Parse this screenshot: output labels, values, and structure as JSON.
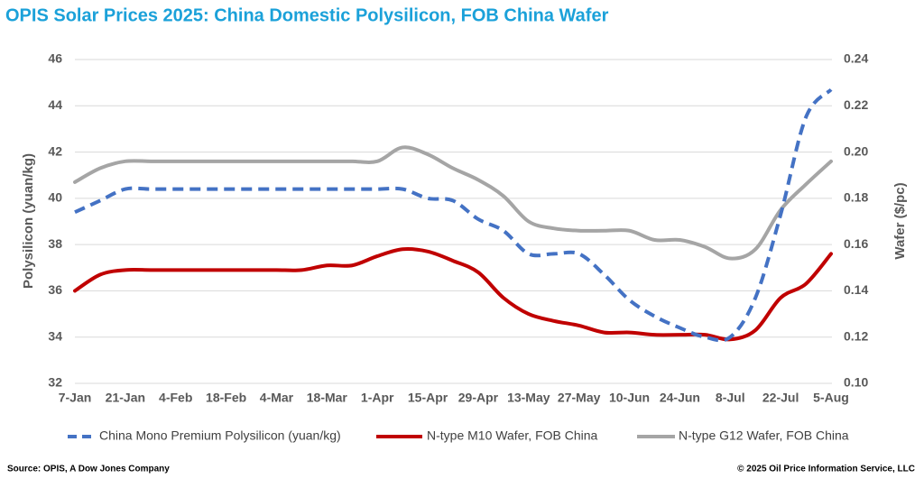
{
  "chart_data": {
    "type": "line",
    "title": "OPIS Solar Prices 2025: China Domestic Polysilicon, FOB China Wafer",
    "y_label": "Polysilicon (yuan/kg)",
    "y2_label": "Wafer ($/pc)",
    "source": "Source: OPIS, A Dow Jones Company",
    "copyright": "© 2025 Oil Price Information Service, LLC",
    "categories": [
      "7-Jan",
      null,
      "21-Jan",
      null,
      "4-Feb",
      null,
      "18-Feb",
      null,
      "4-Mar",
      null,
      "18-Mar",
      null,
      "1-Apr",
      null,
      "15-Apr",
      null,
      "29-Apr",
      null,
      "13-May",
      null,
      "27-May",
      null,
      "10-Jun",
      null,
      "24-Jun",
      null,
      "8-Jul",
      null,
      "22-Jul",
      null,
      "5-Aug"
    ],
    "ylim": [
      32,
      46
    ],
    "yticks": [
      32,
      34,
      36,
      38,
      40,
      42,
      44,
      46
    ],
    "y2lim": [
      0.1,
      0.24
    ],
    "y2ticks": [
      {
        "value": 0.1,
        "label": "0.10"
      },
      {
        "value": 0.12,
        "label": "0.12"
      },
      {
        "value": 0.14,
        "label": "0.14"
      },
      {
        "value": 0.16,
        "label": "0.16"
      },
      {
        "value": 0.18,
        "label": "0.18"
      },
      {
        "value": 0.2,
        "label": "0.20"
      },
      {
        "value": 0.22,
        "label": "0.22"
      },
      {
        "value": 0.24,
        "label": "0.24"
      }
    ],
    "grid": true,
    "legend": "bottom",
    "series": [
      {
        "name": "China Mono Premium Polysilicon (yuan/kg)",
        "color": "#4472c4",
        "dashed": true,
        "values": [
          39.4,
          39.9,
          40.4,
          40.4,
          40.4,
          40.4,
          40.4,
          40.4,
          40.4,
          40.4,
          40.4,
          40.4,
          40.4,
          40.4,
          40.0,
          39.9,
          39.1,
          38.6,
          37.6,
          37.6,
          37.6,
          36.7,
          35.6,
          34.9,
          34.4,
          34.0,
          34.0,
          35.7,
          39.3,
          43.5,
          44.7
        ]
      },
      {
        "name": "N-type M10 Wafer, FOB China",
        "color": "#c00000",
        "axis": "y2",
        "values": [
          0.14,
          0.147,
          0.149,
          0.149,
          0.149,
          0.149,
          0.149,
          0.149,
          0.149,
          0.149,
          0.151,
          0.151,
          0.155,
          0.158,
          0.157,
          0.153,
          0.148,
          0.137,
          0.13,
          0.127,
          0.125,
          0.122,
          0.122,
          0.121,
          0.121,
          0.121,
          0.119,
          0.123,
          0.137,
          0.143,
          0.156
        ]
      },
      {
        "name": "N-type G12 Wafer, FOB China",
        "color": "#a5a5a5",
        "axis": "y2",
        "values": [
          0.187,
          0.193,
          0.196,
          0.196,
          0.196,
          0.196,
          0.196,
          0.196,
          0.196,
          0.196,
          0.196,
          0.196,
          0.196,
          0.202,
          0.199,
          0.193,
          0.188,
          0.181,
          0.17,
          0.167,
          0.166,
          0.166,
          0.166,
          0.162,
          0.162,
          0.159,
          0.154,
          0.158,
          0.175,
          0.186,
          0.196
        ]
      }
    ]
  }
}
